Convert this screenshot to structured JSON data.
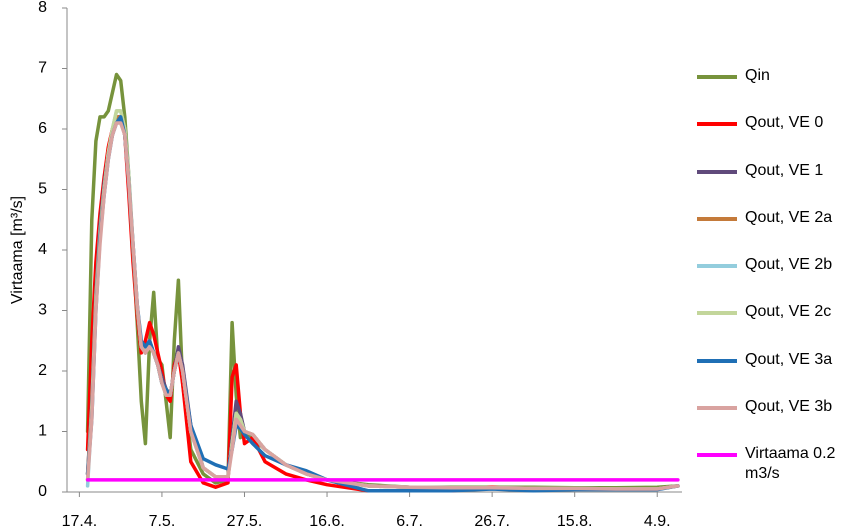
{
  "chart_data": {
    "type": "line",
    "y_label": "Virtaama [m³/s]",
    "x": [
      2,
      3,
      4,
      5,
      6,
      7,
      8,
      9,
      10,
      11,
      12,
      13,
      14,
      15,
      16,
      17,
      18,
      19,
      20,
      21,
      22,
      23,
      24,
      25,
      27,
      30,
      33,
      36,
      37,
      38,
      39,
      40,
      42,
      45,
      50,
      55,
      60,
      70,
      80,
      90,
      100,
      110,
      120,
      130,
      140,
      145
    ],
    "xlim": [
      -3,
      146
    ],
    "xticks": [
      {
        "value": 0,
        "label": "17.4."
      },
      {
        "value": 20,
        "label": "7.5."
      },
      {
        "value": 40,
        "label": "27.5."
      },
      {
        "value": 60,
        "label": "16.6."
      },
      {
        "value": 80,
        "label": "6.7."
      },
      {
        "value": 100,
        "label": "26.7."
      },
      {
        "value": 120,
        "label": "15.8."
      },
      {
        "value": 140,
        "label": "4.9."
      }
    ],
    "ylim": [
      0,
      8
    ],
    "yticks": [
      0,
      1,
      2,
      3,
      4,
      5,
      6,
      7,
      8
    ],
    "grid": false,
    "series": [
      {
        "name": "Qin",
        "color": "#77933c",
        "values": [
          1.0,
          4.5,
          5.8,
          6.2,
          6.2,
          6.3,
          6.6,
          6.9,
          6.8,
          6.2,
          5.2,
          4.0,
          2.8,
          1.5,
          0.8,
          2.5,
          3.3,
          2.2,
          2.1,
          1.5,
          0.9,
          2.5,
          3.5,
          1.8,
          0.7,
          0.3,
          0.15,
          0.2,
          2.8,
          1.6,
          0.9,
          1.0,
          0.9,
          0.7,
          0.45,
          0.3,
          0.2,
          0.12,
          0.08,
          0.08,
          0.08,
          0.08,
          0.07,
          0.07,
          0.08,
          0.1
        ]
      },
      {
        "name": "Qout, VE 0",
        "color": "#ff0000",
        "values": [
          0.7,
          2.5,
          3.8,
          4.6,
          5.2,
          5.7,
          6.0,
          6.2,
          6.2,
          5.9,
          4.9,
          3.8,
          2.9,
          2.3,
          2.5,
          2.8,
          2.6,
          2.3,
          2.0,
          1.6,
          1.5,
          2.1,
          2.3,
          1.8,
          0.5,
          0.15,
          0.08,
          0.15,
          1.9,
          2.1,
          1.3,
          0.8,
          0.9,
          0.5,
          0.3,
          0.2,
          0.12,
          0.02,
          0.02,
          0.02,
          0.08,
          0.03,
          0.05,
          0.05,
          0.05,
          0.1
        ]
      },
      {
        "name": "Qout, VE 1",
        "color": "#604a7b",
        "values": [
          0.3,
          1.5,
          3.3,
          4.4,
          5.1,
          5.6,
          5.9,
          6.2,
          6.2,
          5.9,
          5.1,
          4.0,
          3.0,
          2.4,
          2.3,
          2.5,
          2.3,
          2.1,
          1.9,
          1.7,
          1.6,
          2.0,
          2.4,
          2.1,
          1.1,
          0.4,
          0.25,
          0.25,
          0.9,
          1.5,
          1.3,
          1.0,
          0.95,
          0.7,
          0.45,
          0.3,
          0.2,
          0.1,
          0.08,
          0.07,
          0.07,
          0.06,
          0.06,
          0.05,
          0.05,
          0.1
        ]
      },
      {
        "name": "Qout, VE 2a",
        "color": "#c47a3a",
        "values": [
          0.3,
          1.4,
          3.2,
          4.3,
          5.0,
          5.6,
          5.9,
          6.2,
          6.2,
          5.9,
          5.1,
          4.0,
          3.0,
          2.4,
          2.3,
          2.5,
          2.3,
          2.1,
          1.8,
          1.7,
          1.6,
          2.0,
          2.3,
          2.0,
          1.0,
          0.4,
          0.25,
          0.25,
          0.8,
          1.3,
          1.2,
          1.0,
          0.95,
          0.7,
          0.45,
          0.3,
          0.2,
          0.1,
          0.08,
          0.07,
          0.07,
          0.06,
          0.06,
          0.05,
          0.05,
          0.1
        ]
      },
      {
        "name": "Qout, VE 2b",
        "color": "#93cddd",
        "values": [
          0.1,
          1.3,
          3.1,
          4.2,
          5.0,
          5.6,
          6.0,
          6.3,
          6.3,
          6.0,
          5.2,
          4.1,
          3.1,
          2.4,
          2.3,
          2.5,
          2.3,
          2.1,
          1.8,
          1.6,
          1.6,
          2.0,
          2.3,
          2.0,
          1.0,
          0.4,
          0.25,
          0.25,
          0.8,
          1.3,
          1.2,
          1.0,
          0.95,
          0.7,
          0.45,
          0.3,
          0.2,
          0.1,
          0.08,
          0.07,
          0.07,
          0.06,
          0.06,
          0.05,
          0.05,
          0.1
        ]
      },
      {
        "name": "Qout, VE 2c",
        "color": "#c3d69b",
        "values": [
          0.2,
          1.4,
          3.2,
          4.3,
          5.0,
          5.6,
          6.0,
          6.3,
          6.3,
          6.0,
          5.2,
          4.1,
          3.1,
          2.4,
          2.3,
          2.5,
          2.3,
          2.1,
          1.8,
          1.6,
          1.6,
          2.0,
          2.3,
          2.0,
          1.0,
          0.4,
          0.25,
          0.25,
          0.8,
          1.3,
          1.2,
          1.0,
          0.95,
          0.7,
          0.45,
          0.3,
          0.2,
          0.1,
          0.08,
          0.07,
          0.07,
          0.06,
          0.06,
          0.05,
          0.05,
          0.1
        ]
      },
      {
        "name": "Qout, VE 3a",
        "color": "#1f6fb5",
        "values": [
          0.3,
          1.2,
          3.0,
          4.2,
          4.9,
          5.5,
          5.9,
          6.1,
          6.2,
          5.9,
          5.1,
          4.1,
          3.1,
          2.5,
          2.4,
          2.5,
          2.3,
          2.1,
          1.8,
          1.7,
          1.6,
          2.0,
          2.3,
          2.0,
          1.1,
          0.55,
          0.45,
          0.38,
          0.7,
          1.1,
          1.05,
          0.95,
          0.8,
          0.6,
          0.45,
          0.35,
          0.2,
          0.02,
          0.02,
          0.02,
          0.05,
          0.02,
          0.04,
          0.04,
          0.04,
          0.1
        ]
      },
      {
        "name": "Qout, VE 3b",
        "color": "#d9a3a0",
        "values": [
          0.2,
          1.2,
          3.0,
          4.1,
          4.9,
          5.5,
          5.9,
          6.1,
          6.1,
          5.9,
          5.1,
          4.1,
          3.1,
          2.4,
          2.3,
          2.4,
          2.3,
          2.1,
          1.8,
          1.6,
          1.6,
          2.0,
          2.3,
          2.0,
          1.0,
          0.4,
          0.25,
          0.25,
          0.7,
          1.2,
          1.1,
          1.0,
          0.95,
          0.7,
          0.45,
          0.3,
          0.2,
          0.1,
          0.08,
          0.07,
          0.07,
          0.06,
          0.06,
          0.05,
          0.05,
          0.1
        ]
      },
      {
        "name": "Virtaama 0.2 m3/s",
        "color": "#ff00ff",
        "values": [
          0.2,
          0.2,
          0.2,
          0.2,
          0.2,
          0.2,
          0.2,
          0.2,
          0.2,
          0.2,
          0.2,
          0.2,
          0.2,
          0.2,
          0.2,
          0.2,
          0.2,
          0.2,
          0.2,
          0.2,
          0.2,
          0.2,
          0.2,
          0.2,
          0.2,
          0.2,
          0.2,
          0.2,
          0.2,
          0.2,
          0.2,
          0.2,
          0.2,
          0.2,
          0.2,
          0.2,
          0.2,
          0.2,
          0.2,
          0.2,
          0.2,
          0.2,
          0.2,
          0.2,
          0.2,
          0.2
        ]
      }
    ]
  }
}
